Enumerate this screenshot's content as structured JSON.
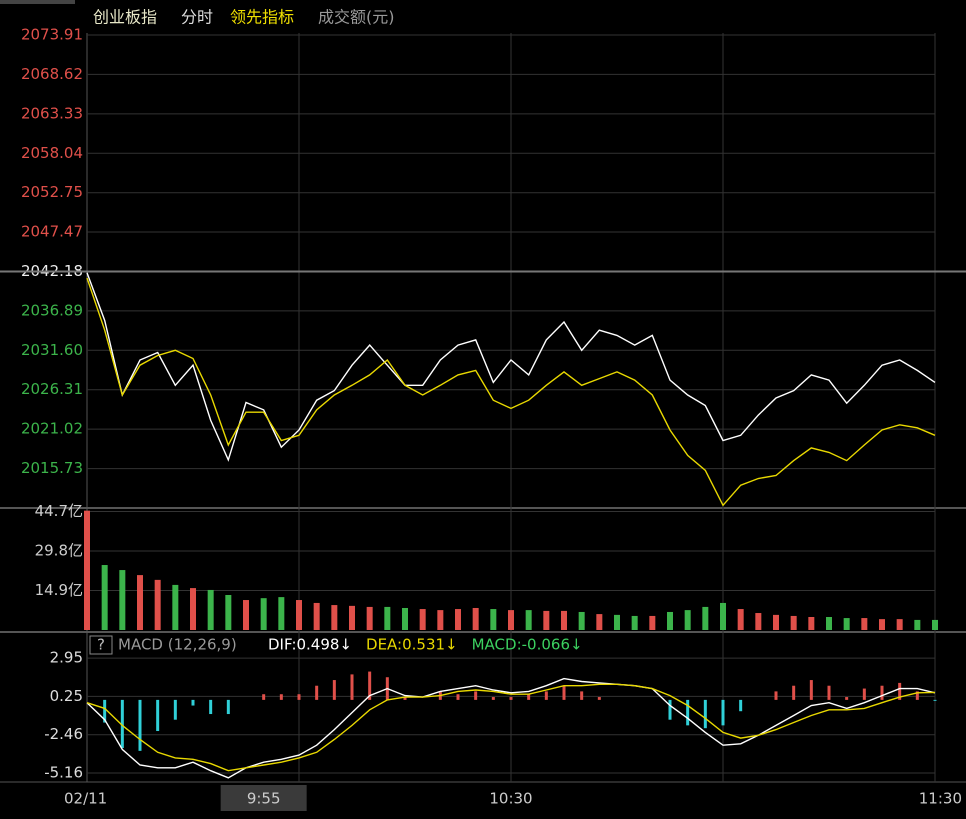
{
  "header": {
    "tabs": [
      "创业板指",
      "分时",
      "领先指标",
      "成交额(元)"
    ]
  },
  "chart_data": [
    {
      "type": "line",
      "categories": [
        "02/11",
        null,
        null,
        null,
        null,
        null,
        null,
        null,
        null,
        null,
        "9:55",
        null,
        null,
        null,
        null,
        null,
        null,
        null,
        null,
        null,
        null,
        null,
        null,
        null,
        "10:30",
        null,
        null,
        null,
        null,
        null,
        null,
        null,
        null,
        null,
        null,
        null,
        null,
        null,
        null,
        null,
        null,
        null,
        null,
        null,
        null,
        null,
        null,
        null,
        "11:30"
      ],
      "cursor_category": "9:55",
      "ylim": [
        2010.44,
        2073.91
      ],
      "yticks": [
        2073.91,
        2068.62,
        2063.33,
        2058.04,
        2052.75,
        2047.47,
        2042.18,
        2036.89,
        {
          "value": 2031.6,
          "label": "2031.60"
        },
        2026.31,
        2021.02,
        2015.73
      ],
      "reference_line": 2042.18,
      "grid": true,
      "series": [
        {
          "color": "#ffffff",
          "values": [
            2042.0,
            2035.6,
            2025.6,
            2030.3,
            2031.3,
            2026.9,
            2029.6,
            2022.2,
            2016.9,
            2024.6,
            2023.6,
            2018.6,
            2020.9,
            2024.9,
            2026.2,
            2029.6,
            2032.3,
            2029.6,
            2026.9,
            2026.9,
            2030.3,
            2032.3,
            2033.0,
            2027.3,
            2030.3,
            2028.3,
            2033.0,
            2035.4,
            2031.6,
            2034.3,
            2033.6,
            2032.3,
            2033.6,
            2027.6,
            2025.6,
            2024.2,
            2019.5,
            2020.2,
            2022.9,
            2025.2,
            2026.2,
            2028.3,
            2027.6,
            2024.5,
            2026.9,
            2029.6,
            2030.3,
            2028.9,
            2027.3
          ]
        },
        {
          "color": "#e8d800",
          "values": [
            2041.3,
            2034.3,
            2025.6,
            2029.6,
            2030.9,
            2031.6,
            2030.5,
            2025.6,
            2018.9,
            2023.3,
            2023.3,
            2019.5,
            2020.2,
            2023.6,
            2025.6,
            2026.9,
            2028.3,
            2030.3,
            2026.9,
            2025.6,
            2026.9,
            2028.3,
            2028.9,
            2024.9,
            2023.8,
            2024.9,
            2026.9,
            2028.7,
            2026.9,
            2027.8,
            2028.7,
            2027.6,
            2025.6,
            2020.9,
            2017.5,
            2015.5,
            2010.8,
            2013.5,
            2014.4,
            2014.8,
            2016.8,
            2018.5,
            2017.9,
            2016.8,
            2018.9,
            2020.9,
            2021.6,
            2021.2,
            2020.2
          ]
        }
      ]
    },
    {
      "type": "bar",
      "ylim": [
        0,
        46
      ],
      "yticks": [
        {
          "value": 44.7,
          "label": "44.7亿"
        },
        {
          "value": 29.8,
          "label": "29.8亿"
        },
        {
          "value": 14.9,
          "label": "14.9亿"
        }
      ],
      "tick_color": "#cccccc",
      "colors": [
        "#e0504a",
        "#3cb44b"
      ],
      "grid": true,
      "values": [
        45,
        24.5,
        22.6,
        20.7,
        18.9,
        17,
        15.8,
        15.1,
        13.2,
        11.3,
        12,
        12.4,
        11.3,
        10.2,
        9.4,
        9.1,
        8.7,
        8.7,
        8.3,
        7.9,
        7.5,
        7.9,
        8.3,
        7.9,
        7.5,
        7.5,
        7.2,
        7.2,
        6.8,
        6,
        5.7,
        5.3,
        5.3,
        6.8,
        7.5,
        8.7,
        10.2,
        7.9,
        6.4,
        5.7,
        5.3,
        4.9,
        4.9,
        4.5,
        4.5,
        4.1,
        4.1,
        3.8,
        3.8
      ]
    },
    {
      "type": "line",
      "title": "MACD (12,26,9)",
      "ylim": [
        -5.8,
        3.17
      ],
      "yticks": [
        2.95,
        0.25,
        -2.46,
        -5.16
      ],
      "tick_color": "#dddddd",
      "grid": true,
      "series": [
        {
          "name": "DIF:0.498↓",
          "color": "#ffffff",
          "values": [
            -0.2,
            -1.4,
            -3.5,
            -4.6,
            -4.8,
            -4.8,
            -4.4,
            -5,
            -5.5,
            -4.8,
            -4.4,
            -4.2,
            -3.9,
            -3.2,
            -2.1,
            -0.9,
            0.3,
            0.8,
            0.3,
            0.2,
            0.6,
            0.8,
            1,
            0.7,
            0.5,
            0.6,
            1,
            1.5,
            1.3,
            1.2,
            1.1,
            1,
            0.8,
            -0.4,
            -1.3,
            -2.3,
            -3.2,
            -3.1,
            -2.5,
            -1.8,
            -1.1,
            -0.4,
            -0.2,
            -0.6,
            -0.2,
            0.3,
            0.8,
            0.8,
            0.498
          ]
        },
        {
          "name": "DEA:0.531↓",
          "color": "#e8d800",
          "values": [
            -0.2,
            -0.6,
            -1.8,
            -2.8,
            -3.7,
            -4.1,
            -4.2,
            -4.5,
            -5,
            -4.8,
            -4.6,
            -4.4,
            -4.1,
            -3.7,
            -2.8,
            -1.8,
            -0.7,
            0,
            0.2,
            0.2,
            0.3,
            0.6,
            0.7,
            0.6,
            0.4,
            0.4,
            0.7,
            1,
            1,
            1.1,
            1.1,
            1,
            0.8,
            0.3,
            -0.4,
            -1.3,
            -2.3,
            -2.7,
            -2.5,
            -2.1,
            -1.6,
            -1.1,
            -0.7,
            -0.7,
            -0.6,
            -0.2,
            0.2,
            0.5,
            0.531
          ]
        },
        {
          "name": "MACD:-0.066↓",
          "type": "bar",
          "color": "#3cd060",
          "colors": [
            "#e0504a",
            "#30d0d8"
          ],
          "values": [
            0,
            -1.6,
            -3.4,
            -3.6,
            -2.2,
            -1.4,
            -0.4,
            -1,
            -1,
            0,
            0.4,
            0.4,
            0.4,
            1,
            1.4,
            1.8,
            2,
            1.6,
            0.2,
            0,
            0.6,
            0.4,
            0.6,
            0.2,
            0.2,
            0.4,
            0.6,
            1,
            0.6,
            0.2,
            0,
            0,
            0,
            -1.4,
            -1.8,
            -2,
            -1.8,
            -0.8,
            0,
            0.6,
            1,
            1.4,
            1,
            0.2,
            0.8,
            1,
            1.2,
            0.6,
            -0.066
          ]
        }
      ]
    }
  ]
}
